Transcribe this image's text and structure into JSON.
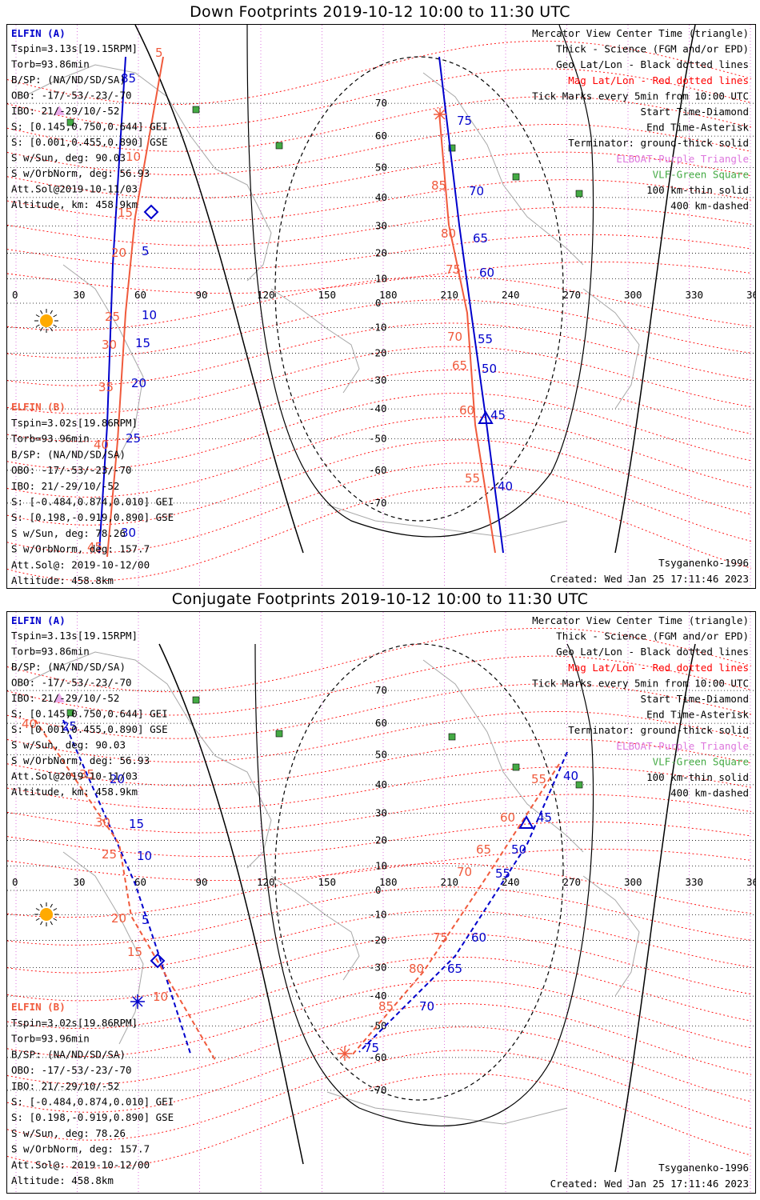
{
  "colors": {
    "elfin_a": "#0000cc",
    "elfin_b": "#f05a3c",
    "mag_grid": "#ff0000",
    "geo_grid": "#000000",
    "coast": "#a8a8a8",
    "elboat": "#dd77dd",
    "vlf": "#44aa44"
  },
  "panels": [
    {
      "title": "Down Footprints 2019-10-12 10:00 to 11:30 UTC",
      "elfin_a": {
        "name": "ELFIN (A)",
        "lines": [
          "Tspin=3.13s[19.15RPM]",
          "Torb=93.86min",
          "B/SP: (NA/ND/SD/SA)",
          "OBO: -17/-53/-23/-70",
          "IBO: 21/-29/10/-52",
          "S: [0.145,0.750,0.644] GEI",
          "S: [0.001,0.455,0.890] GSE",
          "S w/Sun, deg: 90.03",
          "S w/OrbNorm, deg: 56.93",
          "Att.Sol@2019-10-11/03",
          "Altitude, km: 458.9km"
        ]
      },
      "elfin_b": {
        "name": "ELFIN (B)",
        "lines": [
          "Tspin=3.02s[19.86RPM]",
          "Torb=93.96min",
          "B/SP: (NA/ND/SD/SA)",
          "OBO: -17/-53/-23/-70",
          "IBO: 21/-29/10/-52",
          "S: [-0.484,0.874,0.010] GEI",
          "S: [0.198,-0.919,0.890] GSE",
          "S w/Sun, deg: 78.26",
          "S w/OrbNorm, deg: 157.7",
          "Att.Sol@: 2019-10-12/00",
          "Altitude: 458.8km"
        ]
      },
      "legend": [
        "Mercator View Center Time (triangle)",
        "Thick - Science (FGM and/or EPD)",
        "Geo Lat/Lon - Black dotted lines",
        "Mag Lat/Lon - Red dotted lines",
        "Tick Marks every 5min from 10:00 UTC",
        "Start Time-Diamond",
        "End Time-Asterisk",
        "Terminator: ground-thick solid",
        "ELBOAT-Purple Triangle",
        "VLF-Green Square",
        "100 km-thin solid",
        "400 km-dashed"
      ],
      "model": "Tsyganenko-1996",
      "created": "Created: Wed Jan 25 17:11:46 2023",
      "lon_ticks": [
        "0",
        "30",
        "60",
        "90",
        "120",
        "150",
        "180",
        "210",
        "240",
        "270",
        "300",
        "330",
        "360"
      ],
      "lat_ticks": [
        "70",
        "60",
        "50",
        "40",
        "30",
        "20",
        "10",
        "0",
        "-10",
        "-20",
        "-30",
        "-40",
        "-50",
        "-60",
        "-70"
      ],
      "trace_a_labels": [
        "85",
        "5",
        "10",
        "15",
        "20",
        "25",
        "30"
      ],
      "trace_b_labels": [
        "5",
        "10",
        "15",
        "20",
        "25",
        "30",
        "35",
        "40",
        "45"
      ],
      "trace_a2_labels": [
        "75",
        "70",
        "65",
        "60",
        "55",
        "50",
        "45",
        "40"
      ],
      "trace_b2_labels": [
        "85",
        "80",
        "75",
        "70",
        "65",
        "60",
        "55"
      ]
    },
    {
      "title": "Conjugate Footprints 2019-10-12 10:00 to 11:30 UTC",
      "elfin_a": {
        "name": "ELFIN (A)",
        "lines": [
          "Tspin=3.13s[19.15RPM]",
          "Torb=93.86min",
          "B/SP: (NA/ND/SD/SA)",
          "OBO: -17/-53/-23/-70",
          "IBO: 21/-29/10/-52",
          "S: [0.145,0.750,0.644] GEI",
          "S: [0.001,0.455,0.890] GSE",
          "S w/Sun, deg: 90.03",
          "S w/OrbNorm, deg: 56.93",
          "Att.Sol@2019-10-11/03",
          "Altitude, km: 458.9km"
        ]
      },
      "elfin_b": {
        "name": "ELFIN (B)",
        "lines": [
          "Tspin=3.02s[19.86RPM]",
          "Torb=93.96min",
          "B/SP: (NA/ND/SD/SA)",
          "OBO: -17/-53/-23/-70",
          "IBO: 21/-29/10/-52",
          "S: [-0.484,0.874,0.010] GEI",
          "S: [0.198,-0.919,0.890] GSE",
          "S w/Sun, deg: 78.26",
          "S w/OrbNorm, deg: 157.7",
          "Att.Sol@: 2019-10-12/00",
          "Altitude: 458.8km"
        ]
      },
      "legend": [
        "Mercator View Center Time (triangle)",
        "Thick - Science (FGM and/or EPD)",
        "Geo Lat/Lon - Black dotted lines",
        "Mag Lat/Lon - Red dotted lines",
        "Tick Marks every 5min from 10:00 UTC",
        "Start Time-Diamond",
        "End Time-Asterisk",
        "Terminator: ground-thick solid",
        "ELBOAT-Purple Triangle",
        "VLF-Green Square",
        "100 km-thin solid",
        "400 km-dashed"
      ],
      "model": "Tsyganenko-1996",
      "created": "Created: Wed Jan 25 17:11:46 2023",
      "lon_ticks": [
        "0",
        "30",
        "60",
        "90",
        "120",
        "150",
        "180",
        "210",
        "240",
        "270",
        "300",
        "330",
        "360"
      ],
      "lat_ticks": [
        "70",
        "60",
        "50",
        "40",
        "30",
        "20",
        "10",
        "0",
        "-10",
        "-20",
        "-30",
        "-40",
        "-50",
        "-60",
        "-70"
      ],
      "trace_a_labels": [
        "25",
        "20",
        "15",
        "10",
        "5"
      ],
      "trace_b_labels": [
        "40",
        "35",
        "30",
        "25",
        "20",
        "15",
        "10"
      ],
      "trace_a2_labels": [
        "40",
        "45",
        "50",
        "55",
        "60",
        "65",
        "70",
        "75"
      ],
      "trace_b2_labels": [
        "55",
        "60",
        "65",
        "70",
        "75",
        "80",
        "85"
      ]
    }
  ]
}
